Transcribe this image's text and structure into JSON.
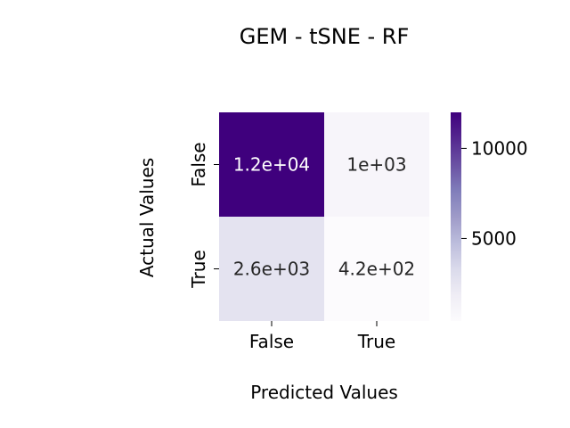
{
  "chart_data": {
    "type": "heatmap",
    "title": "GEM - tSNE - RF",
    "xlabel": "Predicted Values",
    "ylabel": "Actual Values",
    "x_categories": [
      "False",
      "True"
    ],
    "y_categories": [
      "False",
      "True"
    ],
    "values": [
      [
        12000,
        1000
      ],
      [
        2600,
        420
      ]
    ],
    "annotations": [
      [
        "1.2e+04",
        "1e+03"
      ],
      [
        "2.6e+03",
        "4.2e+02"
      ]
    ],
    "colorbar": {
      "range": [
        420,
        12000
      ],
      "ticks": [
        5000,
        10000
      ],
      "tick_labels": [
        "5000",
        "10000"
      ]
    },
    "colormap": "Purples",
    "colors": {
      "low": "#fcfbfd",
      "high": "#3f007d"
    },
    "grid": false,
    "legend": "colorbar-right"
  }
}
